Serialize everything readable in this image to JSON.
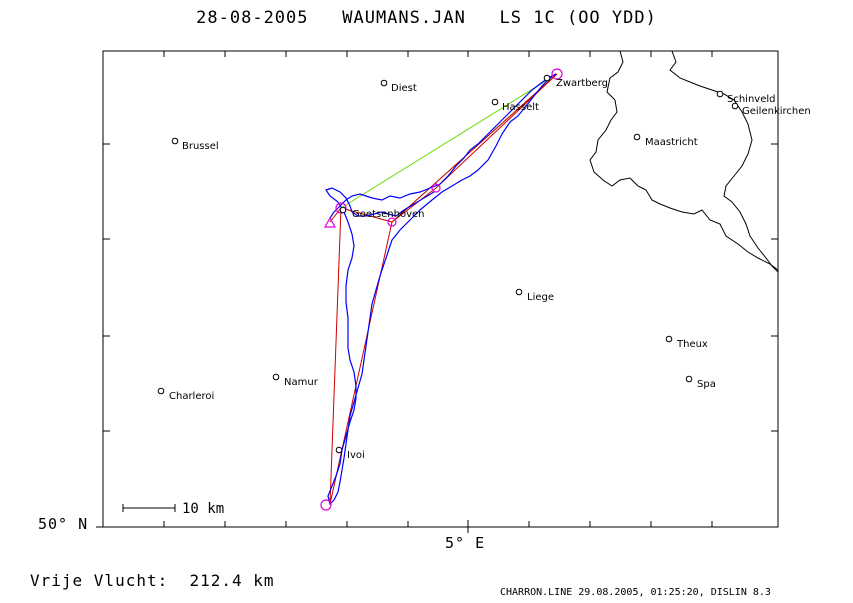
{
  "header": {
    "date": "28-08-2005",
    "pilot": "WAUMANS.JAN",
    "glider": "LS 1C (OO YDD)"
  },
  "axes": {
    "lat_label": "50° N",
    "lon_label": "5° E"
  },
  "scale_bar": {
    "label": "10 km"
  },
  "places": [
    {
      "name": "Diest"
    },
    {
      "name": "Zwartberg"
    },
    {
      "name": "Hasselt"
    },
    {
      "name": "Schinveld"
    },
    {
      "name": "Geilenkirchen"
    },
    {
      "name": "Brussel"
    },
    {
      "name": "Maastricht"
    },
    {
      "name": "Goetsenhoven"
    },
    {
      "name": "Liege"
    },
    {
      "name": "Theux"
    },
    {
      "name": "Namur"
    },
    {
      "name": "Spa"
    },
    {
      "name": "Charleroi"
    },
    {
      "name": "Ivoi"
    }
  ],
  "footer": {
    "distance_label": "Vrije Vlucht:",
    "distance_value": "212.4 km",
    "software": "CHARRON.LINE 29.08.2005, 01:25:20, DISLIN 8.3"
  },
  "colors": {
    "track": "#0000ff",
    "task_line": "#cc0000",
    "sector_line": "#66dd00",
    "turnpoint": "#dd00dd",
    "border": "#000000"
  }
}
